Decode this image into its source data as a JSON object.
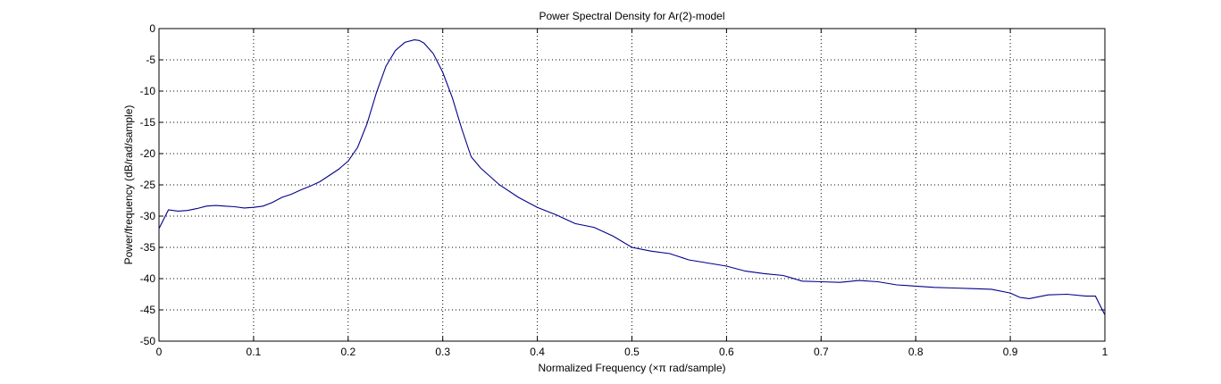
{
  "chart_data": {
    "type": "line",
    "title": "Power Spectral Density for Ar(2)-model",
    "xlabel": "Normalized Frequency  (×π rad/sample)",
    "ylabel": "Power/frequency (dB/rad/sample)",
    "xlim": [
      0,
      1
    ],
    "ylim": [
      -50,
      0
    ],
    "xticks": [
      0,
      0.1,
      0.2,
      0.3,
      0.4,
      0.5,
      0.6,
      0.7,
      0.8,
      0.9,
      1
    ],
    "xtick_labels": [
      "0",
      "0.1",
      "0.2",
      "0.3",
      "0.4",
      "0.5",
      "0.6",
      "0.7",
      "0.8",
      "0.9",
      "1"
    ],
    "yticks": [
      0,
      -5,
      -10,
      -15,
      -20,
      -25,
      -30,
      -35,
      -40,
      -45,
      -50
    ],
    "ytick_labels": [
      "0",
      "-5",
      "-10",
      "-15",
      "-20",
      "-25",
      "-30",
      "-35",
      "-40",
      "-45",
      "-50"
    ],
    "grid": true,
    "line_color": "#00008b",
    "series": [
      {
        "x": [
          0,
          0.005,
          0.01,
          0.02,
          0.03,
          0.04,
          0.05,
          0.06,
          0.07,
          0.08,
          0.09,
          0.1,
          0.11,
          0.12,
          0.13,
          0.14,
          0.15,
          0.16,
          0.17,
          0.18,
          0.19,
          0.2,
          0.21,
          0.22,
          0.23,
          0.24,
          0.25,
          0.26,
          0.27,
          0.275,
          0.28,
          0.29,
          0.3,
          0.31,
          0.32,
          0.33,
          0.34,
          0.36,
          0.38,
          0.4,
          0.42,
          0.44,
          0.46,
          0.48,
          0.5,
          0.52,
          0.54,
          0.56,
          0.58,
          0.6,
          0.62,
          0.64,
          0.66,
          0.68,
          0.7,
          0.72,
          0.74,
          0.76,
          0.78,
          0.8,
          0.82,
          0.84,
          0.86,
          0.88,
          0.9,
          0.91,
          0.92,
          0.94,
          0.96,
          0.98,
          0.99,
          1.0
        ],
        "y": [
          -32,
          -30.5,
          -29,
          -29.2,
          -29.1,
          -28.8,
          -28.4,
          -28.3,
          -28.4,
          -28.5,
          -28.7,
          -28.6,
          -28.4,
          -27.8,
          -27,
          -26.5,
          -25.8,
          -25.2,
          -24.5,
          -23.5,
          -22.5,
          -21.2,
          -19,
          -15.2,
          -10.2,
          -6,
          -3.5,
          -2.2,
          -1.8,
          -1.9,
          -2.3,
          -4,
          -7,
          -11,
          -16,
          -20.5,
          -22.3,
          -25,
          -27,
          -28.6,
          -29.8,
          -31.2,
          -31.8,
          -33.2,
          -35,
          -35.6,
          -36,
          -37,
          -37.5,
          -38,
          -38.8,
          -39.2,
          -39.5,
          -40.4,
          -40.5,
          -40.6,
          -40.3,
          -40.5,
          -41,
          -41.2,
          -41.4,
          -41.5,
          -41.6,
          -41.7,
          -42.3,
          -43,
          -43.2,
          -42.6,
          -42.5,
          -42.8,
          -42.8,
          -45.8
        ]
      }
    ]
  }
}
